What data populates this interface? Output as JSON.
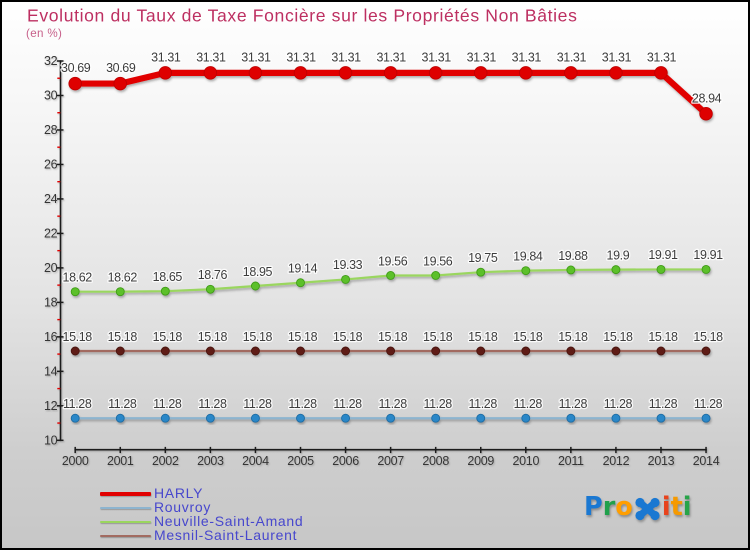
{
  "title": "Evolution du Taux de Taxe Foncière sur les Propriétés Non Bâties",
  "subtitle": "(en %)",
  "title_color": "#bd2f61",
  "subtitle_color": "#c7608a",
  "chart_data": {
    "type": "line",
    "x": [
      2000,
      2001,
      2002,
      2003,
      2004,
      2005,
      2006,
      2007,
      2008,
      2009,
      2010,
      2011,
      2012,
      2013,
      2014
    ],
    "ylim": [
      10,
      32
    ],
    "ytick_step": 2,
    "grid": false,
    "legend_position": "bottom-left",
    "xlabel": "",
    "ylabel": "",
    "series": [
      {
        "name": "HARLY",
        "values": [
          30.69,
          30.69,
          31.31,
          31.31,
          31.31,
          31.31,
          31.31,
          31.31,
          31.31,
          31.31,
          31.31,
          31.31,
          31.31,
          31.31,
          28.94
        ],
        "line_color": "#e10000",
        "marker_color": "#de0000",
        "marker_edge": "#c00000",
        "line_width": 6.2,
        "marker_radius": 6.3
      },
      {
        "name": "Rouvroy",
        "values": [
          11.28,
          11.28,
          11.28,
          11.28,
          11.28,
          11.28,
          11.28,
          11.28,
          11.28,
          11.28,
          11.28,
          11.28,
          11.28,
          11.28,
          11.28
        ],
        "line_color": "#8db4cf",
        "marker_color": "#2b87c8",
        "marker_edge": "#1e6ca3",
        "line_width": 2.2,
        "marker_radius": 4
      },
      {
        "name": "Neuville-Saint-Amand",
        "values": [
          18.62,
          18.62,
          18.65,
          18.76,
          18.95,
          19.14,
          19.33,
          19.56,
          19.56,
          19.75,
          19.84,
          19.88,
          19.9,
          19.91,
          19.91
        ],
        "line_color": "#9ad65e",
        "marker_color": "#5cc02b",
        "marker_edge": "#3f9c17",
        "line_width": 2.2,
        "marker_radius": 4
      },
      {
        "name": "Mesnil-Saint-Laurent",
        "values": [
          15.18,
          15.18,
          15.18,
          15.18,
          15.18,
          15.18,
          15.18,
          15.18,
          15.18,
          15.18,
          15.18,
          15.18,
          15.18,
          15.18,
          15.18
        ],
        "line_color": "#a26b61",
        "marker_color": "#5e1d18",
        "marker_edge": "#4a1410",
        "line_width": 2.2,
        "marker_radius": 4
      }
    ]
  },
  "axis": {
    "tick_color": "#1a1a1a",
    "minor_tick_color": "#e00000",
    "label_color": "#363636"
  },
  "logo": {
    "text": "Proxiti",
    "letters": [
      {
        "ch": "P",
        "color": "#1a78d2"
      },
      {
        "ch": "r",
        "color": "#1fa04b"
      },
      {
        "ch": "o",
        "color": "#ff9e00"
      },
      {
        "ch": "x",
        "color": "#1a78d2"
      },
      {
        "ch": "i",
        "color": "#e8431c"
      },
      {
        "ch": "t",
        "color": "#f69a00"
      },
      {
        "ch": "i",
        "color": "#27a449"
      }
    ]
  }
}
